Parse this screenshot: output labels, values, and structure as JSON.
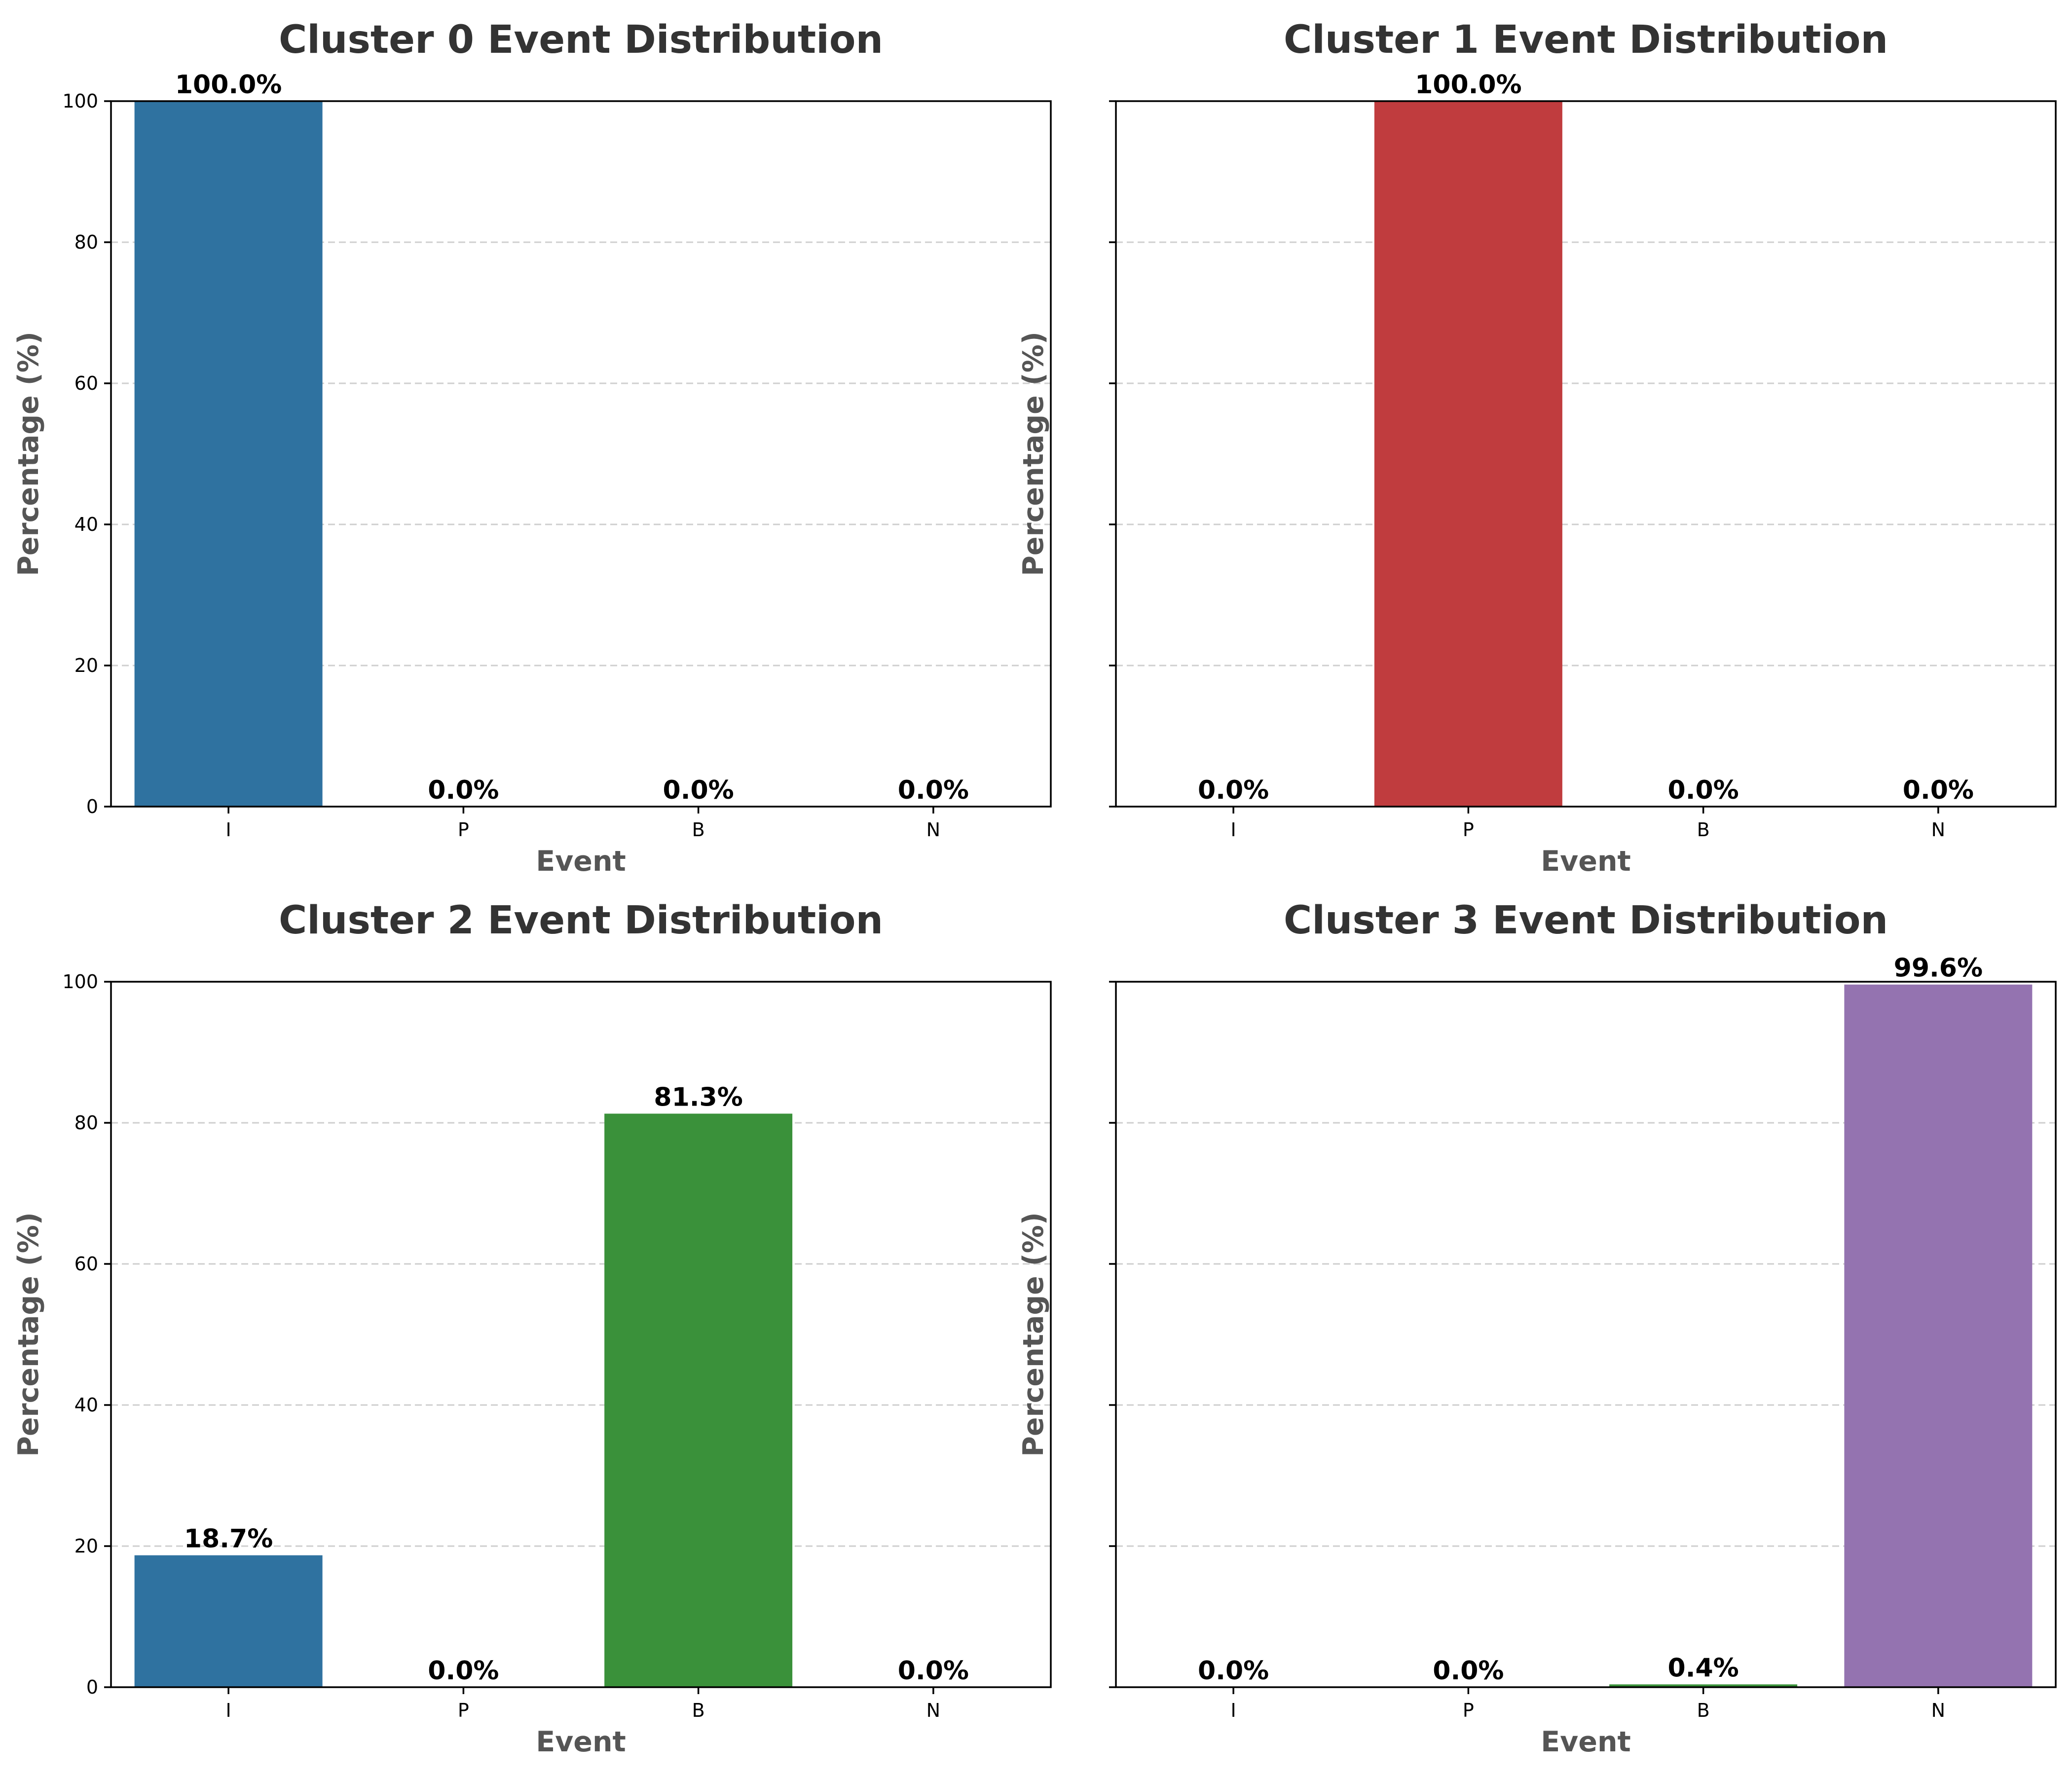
{
  "chart_data": [
    {
      "type": "bar",
      "title": "Cluster 0 Event Distribution",
      "xlabel": "Event",
      "ylabel": "Percentage (%)",
      "categories": [
        "I",
        "P",
        "B",
        "N"
      ],
      "values": [
        100.0,
        0.0,
        0.0,
        0.0
      ],
      "value_labels": [
        "100.0%",
        "0.0%",
        "0.0%",
        "0.0%"
      ],
      "colors": [
        "#2f72a0",
        "#c03c3e",
        "#3a913a",
        "#9473b0"
      ],
      "ylim": [
        0,
        100
      ],
      "yticks": [
        0,
        20,
        40,
        60,
        80,
        100
      ],
      "show_ytick_labels": true,
      "grid": "y-dashed"
    },
    {
      "type": "bar",
      "title": "Cluster 1 Event Distribution",
      "xlabel": "Event",
      "ylabel": "Percentage (%)",
      "categories": [
        "I",
        "P",
        "B",
        "N"
      ],
      "values": [
        0.0,
        100.0,
        0.0,
        0.0
      ],
      "value_labels": [
        "0.0%",
        "100.0%",
        "0.0%",
        "0.0%"
      ],
      "colors": [
        "#2f72a0",
        "#c03c3e",
        "#3a913a",
        "#9473b0"
      ],
      "ylim": [
        0,
        100
      ],
      "yticks": [
        0,
        20,
        40,
        60,
        80,
        100
      ],
      "show_ytick_labels": false,
      "grid": "y-dashed"
    },
    {
      "type": "bar",
      "title": "Cluster 2 Event Distribution",
      "xlabel": "Event",
      "ylabel": "Percentage (%)",
      "categories": [
        "I",
        "P",
        "B",
        "N"
      ],
      "values": [
        18.7,
        0.0,
        81.3,
        0.0
      ],
      "value_labels": [
        "18.7%",
        "0.0%",
        "81.3%",
        "0.0%"
      ],
      "colors": [
        "#2f72a0",
        "#c03c3e",
        "#3a913a",
        "#9473b0"
      ],
      "ylim": [
        0,
        100
      ],
      "yticks": [
        0,
        20,
        40,
        60,
        80,
        100
      ],
      "show_ytick_labels": true,
      "grid": "y-dashed"
    },
    {
      "type": "bar",
      "title": "Cluster 3 Event Distribution",
      "xlabel": "Event",
      "ylabel": "Percentage (%)",
      "categories": [
        "I",
        "P",
        "B",
        "N"
      ],
      "values": [
        0.0,
        0.0,
        0.4,
        99.6
      ],
      "value_labels": [
        "0.0%",
        "0.0%",
        "0.4%",
        "99.6%"
      ],
      "colors": [
        "#2f72a0",
        "#c03c3e",
        "#3a913a",
        "#9473b0"
      ],
      "ylim": [
        0,
        100
      ],
      "yticks": [
        0,
        20,
        40,
        60,
        80,
        100
      ],
      "show_ytick_labels": false,
      "grid": "y-dashed"
    }
  ]
}
